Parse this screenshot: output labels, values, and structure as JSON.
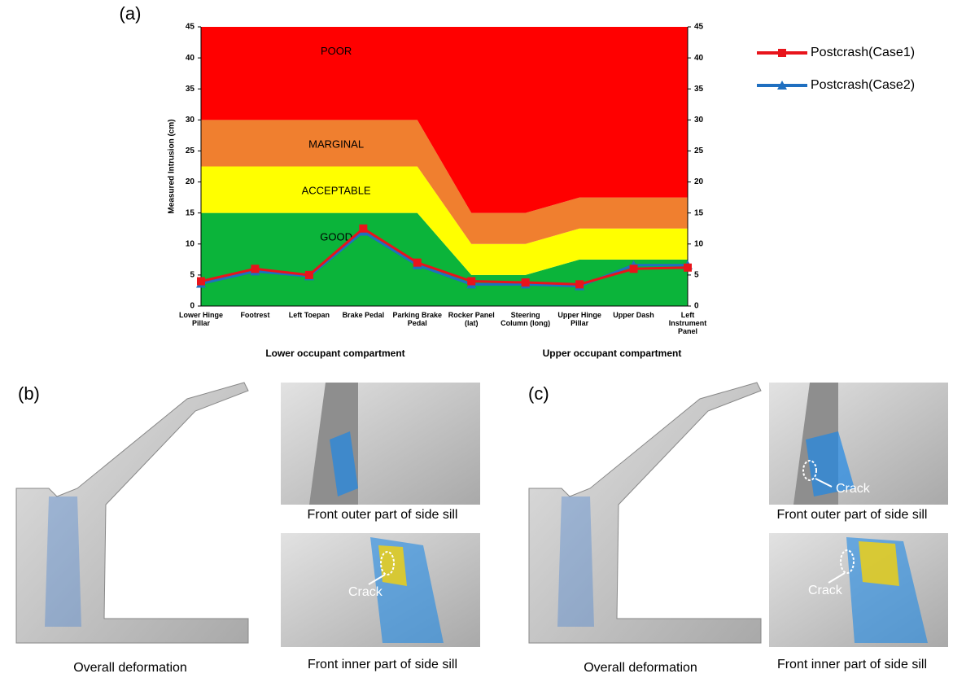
{
  "chart_data": {
    "type": "line",
    "panel_label": "(a)",
    "categories": [
      "Lower Hinge Pillar",
      "Footrest",
      "Left Toepan",
      "Brake Pedal",
      "Parking Brake Pedal",
      "Rocker Panel (lat)",
      "Steering Column (long)",
      "Upper Hinge Pillar",
      "Upper Dash",
      "Left Instrument Panel"
    ],
    "group_labels": [
      "Lower occupant compartment",
      "Upper occupant compartment"
    ],
    "y_label": "Measured Intrusion (cm)",
    "ylim": [
      0,
      45
    ],
    "yticks": [
      0,
      5,
      10,
      15,
      20,
      25,
      30,
      35,
      40,
      45
    ],
    "y2lim": [
      0,
      45
    ],
    "y2ticks": [
      0,
      5,
      10,
      15,
      20,
      25,
      30,
      35,
      40,
      45
    ],
    "bands": [
      {
        "name": "GOOD",
        "color": "#0bb43a",
        "values": [
          15,
          15,
          15,
          15,
          15,
          5,
          5,
          7.5,
          7.5,
          7.5
        ]
      },
      {
        "name": "ACCEPTABLE",
        "color": "#ffff00",
        "values": [
          7.5,
          7.5,
          7.5,
          7.5,
          7.5,
          5,
          5,
          5,
          5,
          5
        ]
      },
      {
        "name": "MARGINAL",
        "color": "#f07f2f",
        "values": [
          7.5,
          7.5,
          7.5,
          7.5,
          7.5,
          5,
          5,
          5,
          5,
          5
        ]
      },
      {
        "name": "POOR",
        "color": "#ff0000",
        "values": [
          15,
          15,
          15,
          15,
          15,
          30,
          30,
          27.5,
          27.5,
          27.5
        ]
      }
    ],
    "series": [
      {
        "name": "Postcrash(Case1)",
        "color": "#e8141b",
        "marker": "square",
        "values": [
          4,
          6,
          5,
          12.5,
          7,
          4,
          3.8,
          3.5,
          6,
          6.2
        ]
      },
      {
        "name": "Postcrash(Case2)",
        "color": "#1f6fc0",
        "marker": "triangle",
        "values": [
          3.6,
          5.6,
          4.8,
          12,
          6.6,
          3.5,
          3.5,
          3.2,
          6.6,
          6.6
        ]
      }
    ]
  },
  "panels": [
    {
      "label": "(b)",
      "overall": "Overall deformation",
      "outer": "Front outer part of side sill",
      "inner": "Front inner part of side sill",
      "crack_inner": "Crack"
    },
    {
      "label": "(c)",
      "overall": "Overall deformation",
      "outer": "Front outer part of side sill",
      "inner": "Front inner part of side sill",
      "crack_outer": "Crack",
      "crack_inner": "Crack"
    }
  ]
}
